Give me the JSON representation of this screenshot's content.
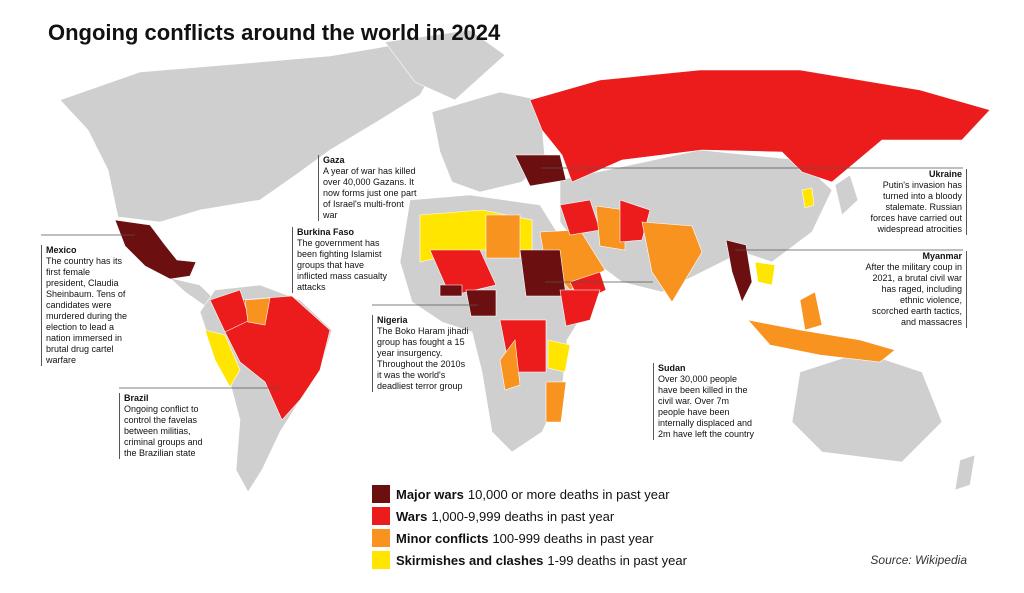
{
  "title": "Ongoing conflicts around the world in 2024",
  "annotations": [
    {
      "title": "Gaza",
      "lines": [
        "A year of war has killed",
        "over 40,000 Gazans. It",
        "now forms just one part",
        "of Israel's multi-front",
        "war"
      ]
    },
    {
      "title": "Ukraine",
      "lines": [
        "Putin's invasion has",
        "turned into a bloody",
        "stalemate. Russian",
        "forces have carried out",
        "widespread atrocities"
      ]
    },
    {
      "title": "Burkina Faso",
      "lines": [
        "The government has",
        "been fighting Islamist",
        "groups that have",
        "inflicted mass casualty",
        "attacks"
      ]
    },
    {
      "title": "Mexico",
      "lines": [
        "The country has its",
        "first female",
        "president, Claudia",
        "Sheinbaum. Tens of",
        "candidates were",
        "murdered during the",
        "election to lead a",
        "nation immersed in",
        "brutal drug cartel",
        "warfare"
      ]
    },
    {
      "title": "Myanmar",
      "lines": [
        "After the military coup in",
        "2021, a brutal civil war",
        "has raged, including",
        "ethnic violence,",
        "scorched earth tactics,",
        "and massacres"
      ]
    },
    {
      "title": "Nigeria",
      "lines": [
        "The Boko Haram jihadi",
        "group has fought a 15",
        "year insurgency.",
        "Throughout the 2010s",
        "it was the world's",
        "deadliest terror group"
      ]
    },
    {
      "title": "Sudan",
      "lines": [
        "Over 30,000 people",
        "have been killed in the",
        "civil war. Over 7m",
        "people have been",
        "internally displaced and",
        "2m have left the country"
      ]
    },
    {
      "title": "Brazil",
      "lines": [
        "Ongoing conflict to",
        "control the favelas",
        "between militias,",
        "criminal groups and",
        "the Brazilian state"
      ]
    }
  ],
  "legend": [
    {
      "label": "Major wars",
      "desc": "10,000 or more deaths in past year",
      "color": "#6b0f10"
    },
    {
      "label": "Wars",
      "desc": "1,000-9,999 deaths in past year",
      "color": "#ec1c1c"
    },
    {
      "label": "Minor conflicts",
      "desc": "100-999 deaths in past year",
      "color": "#f7931e"
    },
    {
      "label": "Skirmishes and clashes",
      "desc": "1-99 deaths in past year",
      "color": "#ffe500"
    }
  ],
  "source": "Source: Wikipedia"
}
